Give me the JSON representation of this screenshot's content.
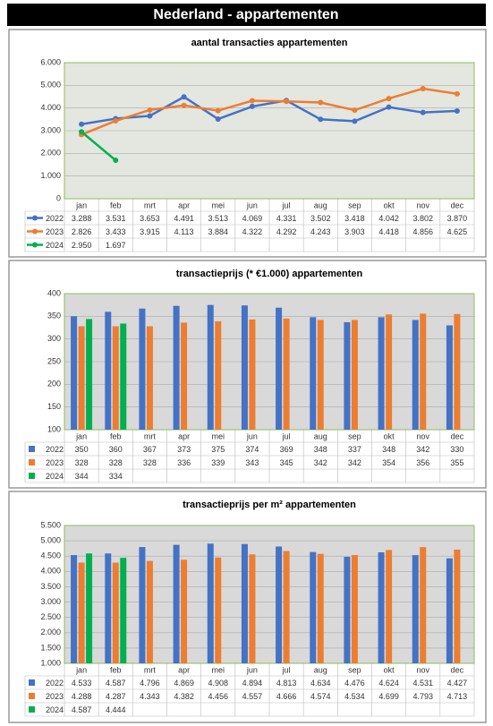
{
  "title": "Nederland - appartementen",
  "chart_data": [
    {
      "type": "line",
      "title": "aantal transacties appartementen",
      "categories": [
        "jan",
        "feb",
        "mrt",
        "apr",
        "mei",
        "jun",
        "jul",
        "aug",
        "sep",
        "okt",
        "nov",
        "dec"
      ],
      "ylim": [
        0,
        6000
      ],
      "yticks": [
        0,
        {
          "value": 1000,
          "label": "1.000"
        },
        {
          "value": 2000,
          "label": "2.000"
        },
        {
          "value": 3000,
          "label": "3.000"
        },
        {
          "value": 4000,
          "label": "4.000"
        },
        {
          "value": 5000,
          "label": "5.000"
        },
        {
          "value": 6000,
          "label": "6.000"
        }
      ],
      "grid": true,
      "series": [
        {
          "name": "2022",
          "color": "#4472c4",
          "values": [
            3288,
            3531,
            3653,
            4491,
            3513,
            4069,
            4331,
            3502,
            3418,
            4042,
            3802,
            3870
          ],
          "value_labels": [
            "3.288",
            "3.531",
            "3.653",
            "4.491",
            "3.513",
            "4.069",
            "4.331",
            "3.502",
            "3.418",
            "4.042",
            "3.802",
            "3.870"
          ]
        },
        {
          "name": "2023",
          "color": "#ed7d31",
          "values": [
            2826,
            3433,
            3915,
            4113,
            3884,
            4322,
            4292,
            4243,
            3903,
            4418,
            4856,
            4625
          ],
          "value_labels": [
            "2.826",
            "3.433",
            "3.915",
            "4.113",
            "3.884",
            "4.322",
            "4.292",
            "4.243",
            "3.903",
            "4.418",
            "4.856",
            "4.625"
          ]
        },
        {
          "name": "2024",
          "color": "#00b050",
          "values": [
            2950,
            1697,
            null,
            null,
            null,
            null,
            null,
            null,
            null,
            null,
            null,
            null
          ],
          "value_labels": [
            "2.950",
            "1.697",
            null,
            null,
            null,
            null,
            null,
            null,
            null,
            null,
            null,
            null
          ]
        }
      ]
    },
    {
      "type": "bar",
      "title": "transactieprijs (* €1.000) appartementen",
      "categories": [
        "jan",
        "feb",
        "mrt",
        "apr",
        "mei",
        "jun",
        "jul",
        "aug",
        "sep",
        "okt",
        "nov",
        "dec"
      ],
      "ylim": [
        100,
        400
      ],
      "yticks": [
        100,
        150,
        200,
        250,
        300,
        350,
        400
      ],
      "grid": true,
      "series": [
        {
          "name": "2022",
          "color": "#4472c4",
          "values": [
            350,
            360,
            367,
            373,
            375,
            374,
            369,
            348,
            337,
            348,
            342,
            330
          ]
        },
        {
          "name": "2023",
          "color": "#ed7d31",
          "values": [
            328,
            328,
            328,
            336,
            339,
            343,
            345,
            342,
            342,
            354,
            356,
            355
          ]
        },
        {
          "name": "2024",
          "color": "#00b050",
          "values": [
            344,
            334,
            null,
            null,
            null,
            null,
            null,
            null,
            null,
            null,
            null,
            null
          ]
        }
      ]
    },
    {
      "type": "bar",
      "title": "transactieprijs per m² appartementen",
      "categories": [
        "jan",
        "feb",
        "mrt",
        "apr",
        "mei",
        "jun",
        "jul",
        "aug",
        "sep",
        "okt",
        "nov",
        "dec"
      ],
      "ylim": [
        1000,
        5500
      ],
      "yticks": [
        {
          "value": 1000,
          "label": "1.000"
        },
        {
          "value": 1500,
          "label": "1.500"
        },
        {
          "value": 2000,
          "label": "2.000"
        },
        {
          "value": 2500,
          "label": "2.500"
        },
        {
          "value": 3000,
          "label": "3.000"
        },
        {
          "value": 3500,
          "label": "3.500"
        },
        {
          "value": 4000,
          "label": "4.000"
        },
        {
          "value": 4500,
          "label": "4.500"
        },
        {
          "value": 5000,
          "label": "5.000"
        },
        {
          "value": 5500,
          "label": "5.500"
        }
      ],
      "grid": true,
      "series": [
        {
          "name": "2022",
          "color": "#4472c4",
          "values": [
            4533,
            4587,
            4796,
            4869,
            4908,
            4894,
            4813,
            4634,
            4476,
            4624,
            4531,
            4427
          ],
          "value_labels": [
            "4.533",
            "4.587",
            "4.796",
            "4.869",
            "4.908",
            "4.894",
            "4.813",
            "4.634",
            "4.476",
            "4.624",
            "4.531",
            "4.427"
          ]
        },
        {
          "name": "2023",
          "color": "#ed7d31",
          "values": [
            4288,
            4287,
            4343,
            4382,
            4456,
            4557,
            4666,
            4574,
            4534,
            4699,
            4793,
            4713
          ],
          "value_labels": [
            "4.288",
            "4.287",
            "4.343",
            "4.382",
            "4.456",
            "4.557",
            "4.666",
            "4.574",
            "4.534",
            "4.699",
            "4.793",
            "4.713"
          ]
        },
        {
          "name": "2024",
          "color": "#00b050",
          "values": [
            4587,
            4444,
            null,
            null,
            null,
            null,
            null,
            null,
            null,
            null,
            null,
            null
          ],
          "value_labels": [
            "4.587",
            "4.444",
            null,
            null,
            null,
            null,
            null,
            null,
            null,
            null,
            null,
            null
          ]
        }
      ]
    }
  ]
}
